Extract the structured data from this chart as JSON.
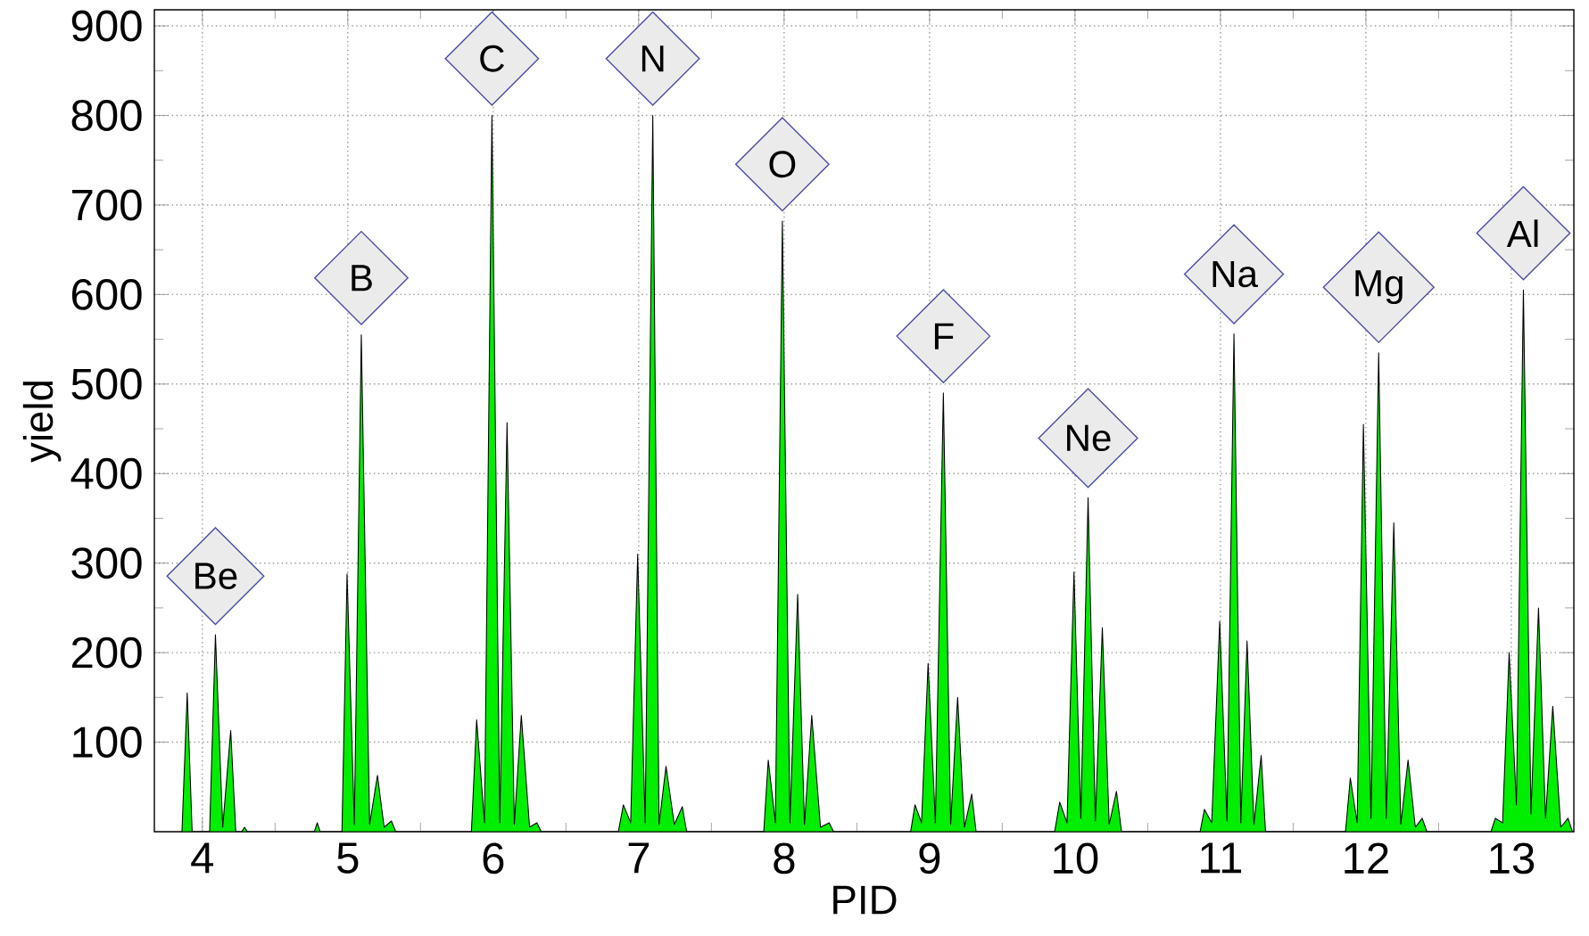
{
  "chart_data": {
    "type": "area",
    "xlabel": "PID",
    "ylabel": "yield",
    "xlim": [
      3.67,
      13.43
    ],
    "ylim": [
      0,
      918
    ],
    "xticks": [
      4,
      5,
      6,
      7,
      8,
      9,
      10,
      11,
      12,
      13
    ],
    "yticks": [
      100,
      200,
      300,
      400,
      500,
      600,
      700,
      800,
      900
    ],
    "grid": true,
    "series": [
      {
        "color": "#00ee00",
        "x": [
          3.86,
          3.896,
          3.93,
          4.05,
          4.09,
          4.14,
          4.195,
          4.23,
          4.27,
          4.29,
          4.31,
          4.77,
          4.79,
          4.81,
          4.96,
          4.995,
          5.045,
          5.093,
          5.15,
          5.204,
          5.25,
          5.3,
          5.33,
          5.85,
          5.886,
          5.94,
          5.991,
          6.045,
          6.095,
          6.145,
          6.193,
          6.25,
          6.3,
          6.33,
          6.86,
          6.895,
          6.945,
          6.993,
          7.045,
          7.097,
          7.14,
          7.188,
          7.245,
          7.3,
          7.33,
          7.86,
          7.891,
          7.94,
          7.988,
          8.04,
          8.093,
          8.14,
          8.19,
          8.25,
          8.31,
          8.34,
          8.87,
          8.9,
          8.945,
          8.99,
          9.04,
          9.095,
          9.145,
          9.193,
          9.24,
          9.29,
          9.32,
          9.86,
          9.895,
          9.945,
          9.993,
          10.04,
          10.09,
          10.14,
          10.188,
          10.235,
          10.285,
          10.32,
          10.86,
          10.89,
          10.94,
          10.995,
          11.045,
          11.093,
          11.14,
          11.183,
          11.23,
          11.28,
          11.31,
          11.86,
          11.893,
          11.94,
          11.983,
          12.035,
          12.088,
          12.14,
          12.192,
          12.24,
          12.29,
          12.34,
          12.387,
          12.42,
          12.86,
          12.89,
          12.94,
          12.985,
          13.035,
          13.083,
          13.135,
          13.187,
          13.235,
          13.285,
          13.34,
          13.39,
          13.42
        ],
        "values": [
          0,
          155,
          0,
          0,
          220,
          5,
          113,
          0,
          0,
          5,
          0,
          0,
          10,
          0,
          0,
          288,
          8,
          555,
          8,
          63,
          5,
          12,
          0,
          0,
          125,
          10,
          800,
          10,
          457,
          8,
          130,
          5,
          10,
          0,
          0,
          30,
          10,
          310,
          10,
          800,
          8,
          73,
          8,
          28,
          0,
          0,
          80,
          10,
          682,
          10,
          265,
          8,
          130,
          5,
          10,
          0,
          0,
          30,
          10,
          188,
          10,
          490,
          8,
          150,
          5,
          42,
          0,
          0,
          33,
          10,
          290,
          15,
          373,
          12,
          228,
          8,
          45,
          0,
          0,
          25,
          10,
          235,
          12,
          556,
          10,
          213,
          8,
          85,
          0,
          0,
          60,
          10,
          455,
          15,
          535,
          15,
          345,
          8,
          80,
          5,
          15,
          0,
          0,
          15,
          10,
          200,
          30,
          605,
          20,
          250,
          15,
          140,
          5,
          15,
          0
        ]
      }
    ],
    "annotations": [
      {
        "text": "Be",
        "x": 4.09,
        "y": 220
      },
      {
        "text": "B",
        "x": 5.093,
        "y": 555
      },
      {
        "text": "C",
        "x": 5.991,
        "y": 800
      },
      {
        "text": "N",
        "x": 7.097,
        "y": 800
      },
      {
        "text": "O",
        "x": 7.988,
        "y": 682
      },
      {
        "text": "F",
        "x": 9.095,
        "y": 490
      },
      {
        "text": "Ne",
        "x": 10.09,
        "y": 373
      },
      {
        "text": "Na",
        "x": 11.093,
        "y": 556
      },
      {
        "text": "Mg",
        "x": 12.088,
        "y": 535
      },
      {
        "text": "Al",
        "x": 13.083,
        "y": 605
      }
    ]
  }
}
